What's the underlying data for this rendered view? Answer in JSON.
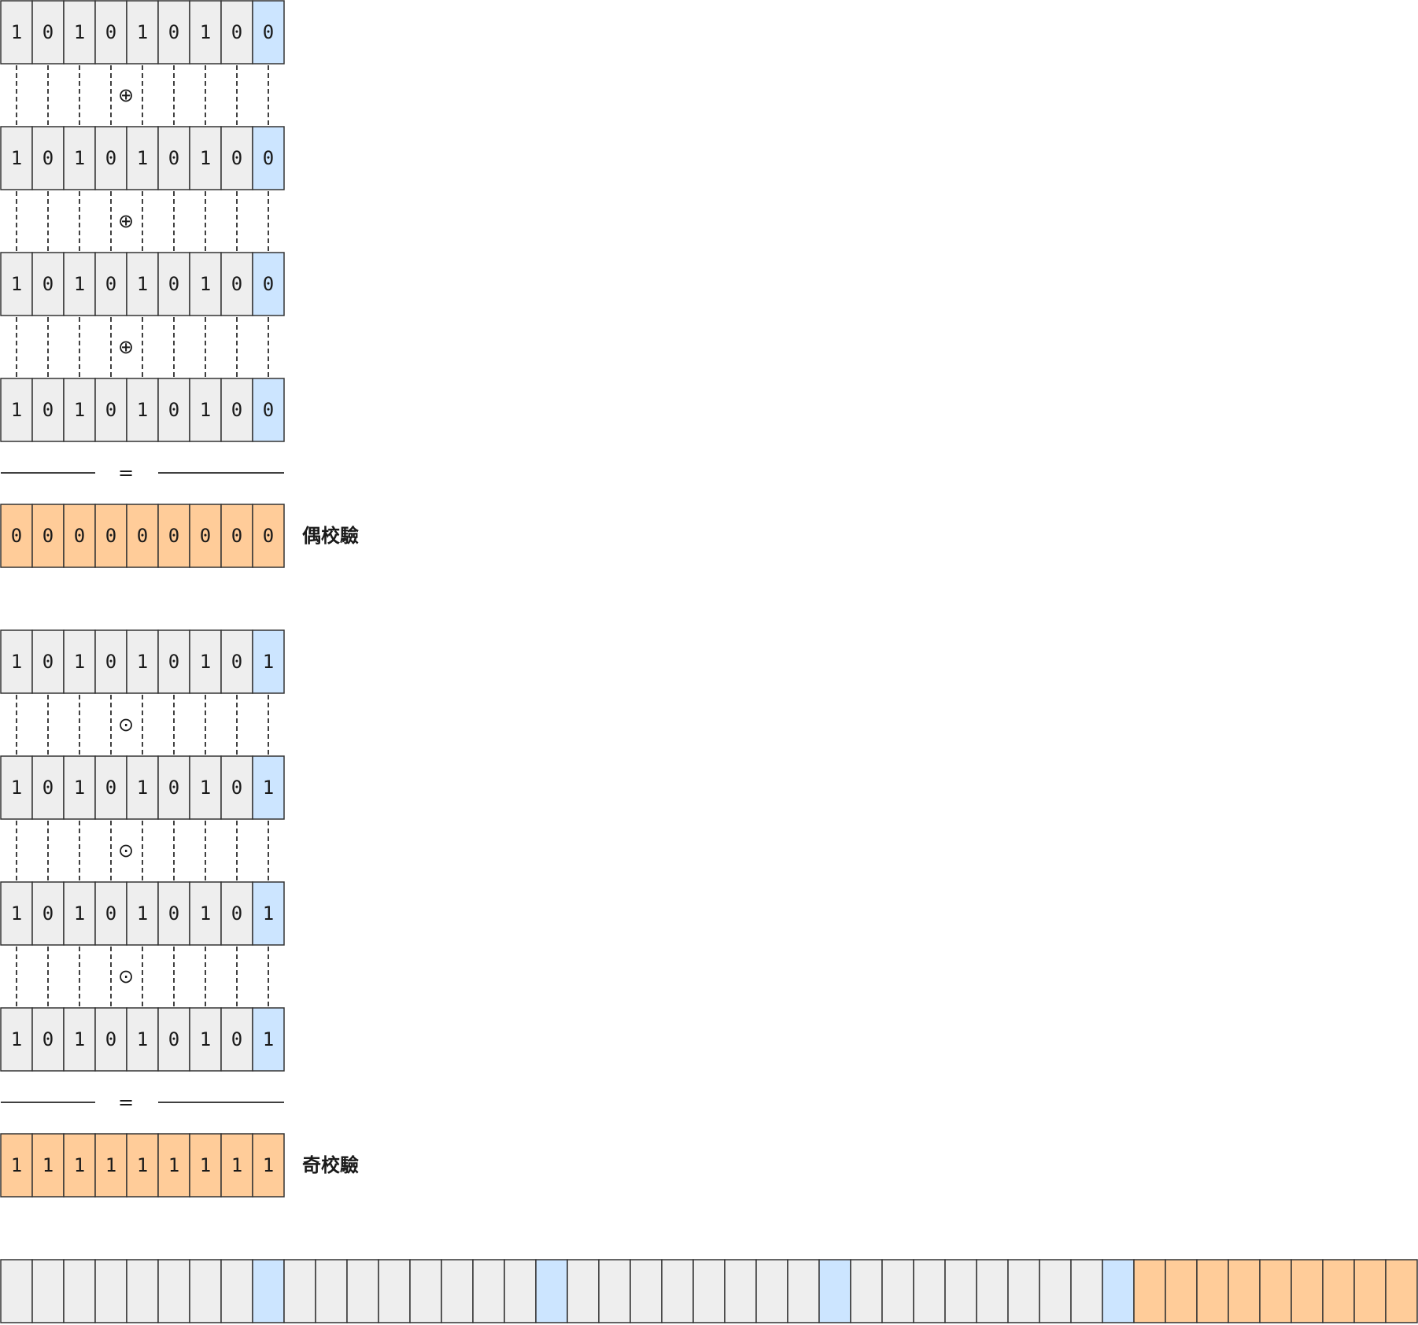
{
  "colors": {
    "cell_default": "#eeeeee",
    "cell_parity_bit": "#cce5ff",
    "cell_result": "#ffcc99",
    "stroke": "#333333",
    "text": "#1a1a1a"
  },
  "even_section": {
    "operator_symbol": "⊕",
    "rows": [
      [
        "1",
        "0",
        "1",
        "0",
        "1",
        "0",
        "1",
        "0",
        "0"
      ],
      [
        "1",
        "0",
        "1",
        "0",
        "1",
        "0",
        "1",
        "0",
        "0"
      ],
      [
        "1",
        "0",
        "1",
        "0",
        "1",
        "0",
        "1",
        "0",
        "0"
      ],
      [
        "1",
        "0",
        "1",
        "0",
        "1",
        "0",
        "1",
        "0",
        "0"
      ]
    ],
    "equals_symbol": "=",
    "result": [
      "0",
      "0",
      "0",
      "0",
      "0",
      "0",
      "0",
      "0",
      "0"
    ],
    "result_label": "偶校驗"
  },
  "odd_section": {
    "operator_symbol": "⊙",
    "rows": [
      [
        "1",
        "0",
        "1",
        "0",
        "1",
        "0",
        "1",
        "0",
        "1"
      ],
      [
        "1",
        "0",
        "1",
        "0",
        "1",
        "0",
        "1",
        "0",
        "1"
      ],
      [
        "1",
        "0",
        "1",
        "0",
        "1",
        "0",
        "1",
        "0",
        "1"
      ],
      [
        "1",
        "0",
        "1",
        "0",
        "1",
        "0",
        "1",
        "0",
        "1"
      ]
    ],
    "equals_symbol": "=",
    "result": [
      "1",
      "1",
      "1",
      "1",
      "1",
      "1",
      "1",
      "1",
      "1"
    ],
    "result_label": "奇校驗"
  },
  "bottom_strip": {
    "cells": [
      "default",
      "default",
      "default",
      "default",
      "default",
      "default",
      "default",
      "default",
      "parity",
      "default",
      "default",
      "default",
      "default",
      "default",
      "default",
      "default",
      "default",
      "parity",
      "default",
      "default",
      "default",
      "default",
      "default",
      "default",
      "default",
      "default",
      "parity",
      "default",
      "default",
      "default",
      "default",
      "default",
      "default",
      "default",
      "default",
      "parity",
      "result",
      "result",
      "result",
      "result",
      "result",
      "result",
      "result",
      "result",
      "result"
    ]
  }
}
